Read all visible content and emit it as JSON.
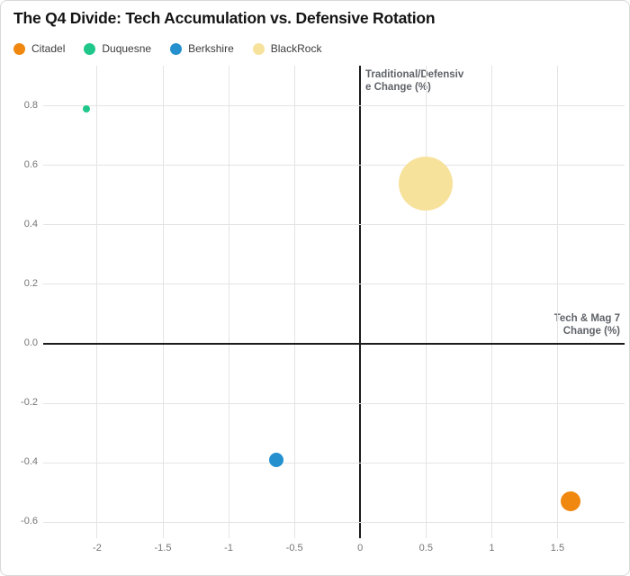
{
  "header": {
    "title": "The Q4 Divide: Tech Accumulation vs. Defensive Rotation"
  },
  "colors": {
    "background": "#ffffff",
    "card_border": "#d8d8d8",
    "grid": "#e4e4e4",
    "zero_axis": "#1b1b1b",
    "tick_label": "#757575",
    "axis_title": "#5f6368",
    "title_text": "#141414"
  },
  "chart_data": {
    "type": "scatter",
    "title": "The Q4 Divide: Tech Accumulation vs. Defensive Rotation",
    "xlabel": "Tech & Mag 7 Change (%)",
    "ylabel": "Traditional/Defensive Change (%)",
    "xlabel_lines": [
      "Tech & Mag 7",
      "Change (%)"
    ],
    "ylabel_lines": [
      "Traditional/Defensiv",
      "e Change (%)"
    ],
    "xlim": [
      -2.41,
      2.01
    ],
    "ylim": [
      -0.633,
      0.936
    ],
    "grid": true,
    "legend_position": "top-left",
    "x_ticks": [
      {
        "value": -2,
        "label": "-2"
      },
      {
        "value": -1.5,
        "label": "-1.5"
      },
      {
        "value": -1,
        "label": "-1"
      },
      {
        "value": -0.5,
        "label": "-0.5"
      },
      {
        "value": 0,
        "label": "0"
      },
      {
        "value": 0.5,
        "label": "0.5"
      },
      {
        "value": 1,
        "label": "1"
      },
      {
        "value": 1.5,
        "label": "1.5"
      }
    ],
    "y_ticks": [
      {
        "value": 0.8,
        "label": "0.8"
      },
      {
        "value": 0.6,
        "label": "0.6"
      },
      {
        "value": 0.4,
        "label": "0.4"
      },
      {
        "value": 0.2,
        "label": "0.2"
      },
      {
        "value": 0.0,
        "label": "0.0"
      },
      {
        "value": -0.2,
        "label": "-0.2"
      },
      {
        "value": -0.4,
        "label": "-0.4"
      },
      {
        "value": -0.6,
        "label": "-0.6"
      }
    ],
    "series": [
      {
        "name": "Citadel",
        "color": "#F0880F",
        "points": [
          {
            "x": 1.6,
            "y": -0.53,
            "size": 11
          }
        ]
      },
      {
        "name": "Duquesne",
        "color": "#1FC88A",
        "points": [
          {
            "x": -2.08,
            "y": 0.79,
            "size": 4
          }
        ]
      },
      {
        "name": "Berkshire",
        "color": "#2491CE",
        "points": [
          {
            "x": -0.64,
            "y": -0.39,
            "size": 8
          }
        ]
      },
      {
        "name": "BlackRock",
        "color": "#F7E29C",
        "points": [
          {
            "x": 0.5,
            "y": 0.54,
            "size": 30
          }
        ]
      }
    ]
  }
}
